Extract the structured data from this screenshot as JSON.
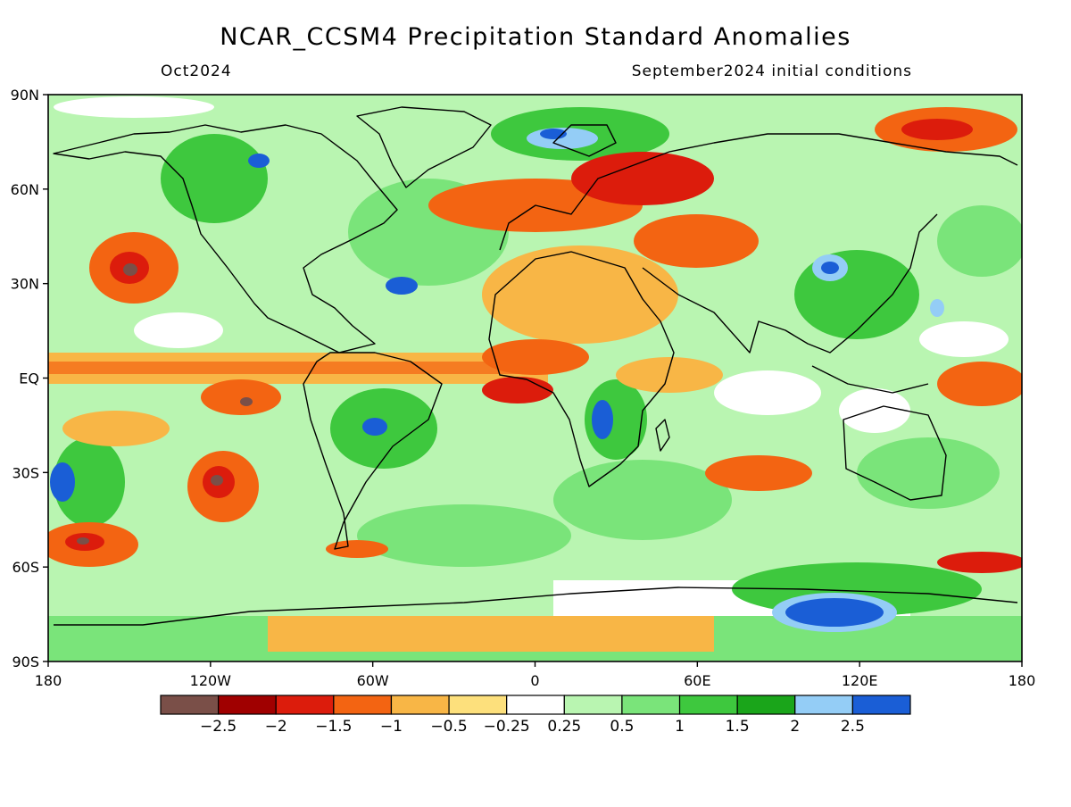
{
  "header": {
    "title": "NCAR_CCSM4 Precipitation Standard Anomalies",
    "forecast_month": "Oct2024",
    "initial_conditions": "September2024 initial conditions"
  },
  "axes": {
    "lat_ticks": [
      "90N",
      "60N",
      "30N",
      "EQ",
      "30S",
      "60S",
      "90S"
    ],
    "lon_ticks": [
      "180",
      "120W",
      "60W",
      "0",
      "60E",
      "120E",
      "180"
    ]
  },
  "legend": {
    "colors": [
      "#7a4f48",
      "#a00000",
      "#dc1c0c",
      "#f36412",
      "#f8b646",
      "#fde07c",
      "#ffffff",
      "#b9f5b1",
      "#7ae47a",
      "#3ec83e",
      "#1aa51a",
      "#94cdf6",
      "#1a5ed6"
    ],
    "labels": [
      "−2.5",
      "−2",
      "−1.5",
      "−1",
      "−0.5",
      "−0.25",
      "0.25",
      "0.5",
      "1",
      "1.5",
      "2",
      "2.5"
    ]
  },
  "colors": {
    "frame": "#000000",
    "coastline": "#000000",
    "background": "#ffffff"
  }
}
